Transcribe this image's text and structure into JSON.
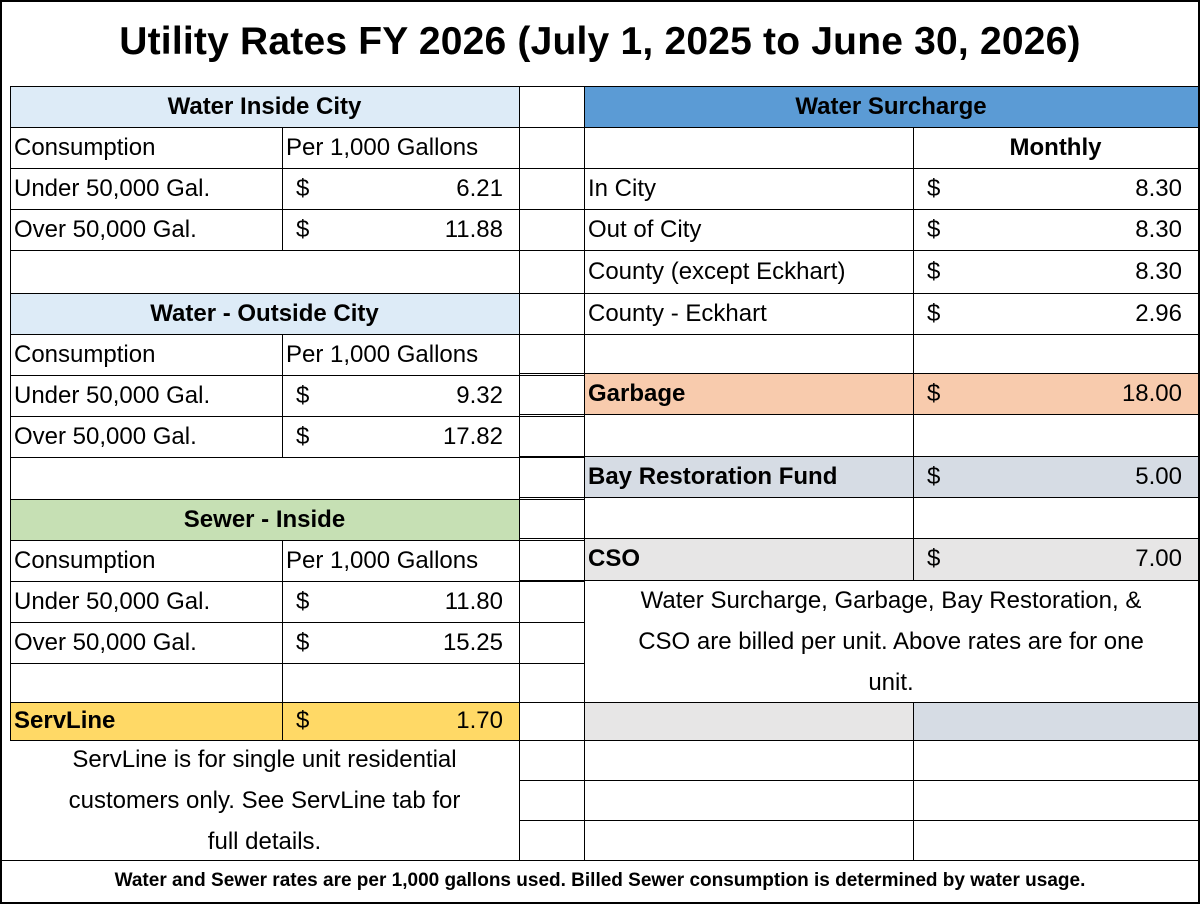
{
  "title": "Utility Rates FY 2026 (July 1, 2025 to June 30, 2026)",
  "left": {
    "water_inside": {
      "heading": "Water Inside City",
      "col1": "Consumption",
      "col2": "Per 1,000 Gallons",
      "rows": [
        {
          "label": "Under 50,000 Gal.",
          "currency": "$",
          "value": "6.21"
        },
        {
          "label": "Over 50,000 Gal.",
          "currency": "$",
          "value": "11.88"
        }
      ]
    },
    "water_outside": {
      "heading": "Water - Outside City",
      "col1": "Consumption",
      "col2": "Per 1,000 Gallons",
      "rows": [
        {
          "label": "Under 50,000 Gal.",
          "currency": "$",
          "value": "9.32"
        },
        {
          "label": "Over 50,000 Gal.",
          "currency": "$",
          "value": "17.82"
        }
      ]
    },
    "sewer_inside": {
      "heading": "Sewer - Inside",
      "col1": "Consumption",
      "col2": "Per 1,000 Gallons",
      "rows": [
        {
          "label": "Under 50,000 Gal.",
          "currency": "$",
          "value": "11.80"
        },
        {
          "label": "Over 50,000 Gal.",
          "currency": "$",
          "value": "15.25"
        }
      ]
    },
    "servline": {
      "label": "ServLine",
      "currency": "$",
      "value": "1.70",
      "note_lines": [
        "ServLine is for single unit residential",
        "customers only. See ServLine tab for",
        "full details."
      ]
    }
  },
  "right": {
    "surcharge": {
      "heading": "Water Surcharge",
      "col_header": "Monthly",
      "rows": [
        {
          "label": "In City",
          "currency": "$",
          "value": "8.30"
        },
        {
          "label": "Out of City",
          "currency": "$",
          "value": "8.30"
        },
        {
          "label": "County (except Eckhart)",
          "currency": "$",
          "value": "8.30"
        },
        {
          "label": "County - Eckhart",
          "currency": "$",
          "value": "2.96"
        }
      ]
    },
    "garbage": {
      "label": "Garbage",
      "currency": "$",
      "value": "18.00"
    },
    "bay": {
      "label": "Bay Restoration Fund",
      "currency": "$",
      "value": "5.00"
    },
    "cso": {
      "label": "CSO",
      "currency": "$",
      "value": "7.00"
    },
    "note_lines": [
      "Water Surcharge, Garbage, Bay Restoration, &",
      "CSO are billed per unit. Above rates are for one",
      "unit."
    ]
  },
  "footer": "Water and Sewer rates are per 1,000 gallons used. Billed Sewer consumption is determined by water usage.",
  "colors": {
    "water_header": "#ddebf7",
    "surcharge_header": "#5b9bd5",
    "sewer_header": "#c6e0b4",
    "servline": "#ffd966",
    "garbage": "#f8cbad",
    "bay": "#d6dce4",
    "cso": "#e7e6e6",
    "blank_grey": "#e7e6e6",
    "blank_bluegrey": "#d6dce4"
  }
}
